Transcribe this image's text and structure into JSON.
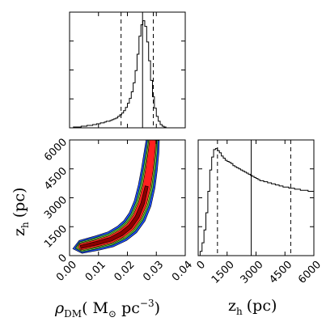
{
  "chart_data": [
    {
      "type": "histogram",
      "panel": "top-left",
      "x_ticks": [
        "0.00",
        "0.01",
        "0.02",
        "0.03",
        "0.04"
      ],
      "xlim": [
        0.0,
        0.042
      ],
      "bin_width": 0.0007,
      "bin_start": 0.0,
      "counts": [
        0,
        0,
        1,
        1,
        1,
        1,
        2,
        2,
        2,
        3,
        3,
        3,
        4,
        4,
        5,
        5,
        6,
        6,
        7,
        8,
        8,
        9,
        10,
        11,
        12,
        14,
        16,
        18,
        21,
        25,
        30,
        36,
        44,
        55,
        70,
        90,
        112,
        126,
        131,
        124,
        105,
        82,
        58,
        38,
        24,
        14,
        8,
        4,
        2,
        1,
        0,
        0,
        0,
        0,
        0,
        0,
        0,
        0,
        0,
        0
      ],
      "median": 0.0265,
      "lower": 0.0187,
      "upper": 0.0304
    },
    {
      "type": "contour",
      "panel": "bottom-left",
      "x_label": "ρ",
      "x_label_sub": "DM",
      "x_label_units_a": "( M",
      "x_label_units_sun": "⊙",
      "x_label_units_b": " pc",
      "x_label_units_exp": "−3",
      "x_label_units_c": ")",
      "y_label": "z",
      "y_label_sub": "h",
      "y_label_units": "(pc)",
      "x_ticks": [
        "0.00",
        "0.01",
        "0.02",
        "0.03",
        "0.04"
      ],
      "y_ticks": [
        "0",
        "1500",
        "3000",
        "4500",
        "6000"
      ],
      "xlim": [
        0.0,
        0.042
      ],
      "ylim": [
        0,
        6000
      ],
      "level_colors": [
        "#1f4fff",
        "#50c850",
        "#ffff40",
        "#ff2020",
        "#8b0000"
      ],
      "ridge": [
        {
          "x": 0.004,
          "y": 450
        },
        {
          "x": 0.01,
          "y": 650
        },
        {
          "x": 0.015,
          "y": 850
        },
        {
          "x": 0.019,
          "y": 1150
        },
        {
          "x": 0.022,
          "y": 1500
        },
        {
          "x": 0.0245,
          "y": 2000
        },
        {
          "x": 0.0265,
          "y": 2700
        },
        {
          "x": 0.028,
          "y": 3600
        },
        {
          "x": 0.029,
          "y": 4500
        },
        {
          "x": 0.0298,
          "y": 5400
        },
        {
          "x": 0.0302,
          "y": 6000
        }
      ]
    },
    {
      "type": "histogram",
      "panel": "bottom-right",
      "x_label": "z",
      "x_label_sub": "h",
      "x_label_units": "(pc)",
      "x_ticks": [
        "0",
        "1500",
        "3000",
        "4500",
        "6000"
      ],
      "xlim": [
        0,
        6000
      ],
      "bin_width": 100,
      "bin_start": 0,
      "counts": [
        0,
        4,
        12,
        24,
        40,
        60,
        80,
        92,
        99,
        100,
        98,
        96,
        93,
        91,
        89,
        88,
        87,
        86,
        84,
        83,
        82,
        81,
        80,
        79,
        78,
        77,
        76,
        75,
        74,
        73,
        72,
        71,
        70,
        70,
        69,
        69,
        68,
        68,
        67,
        67,
        66,
        66,
        65,
        65,
        64,
        64,
        64,
        63,
        63,
        63,
        62,
        62,
        62,
        61,
        61,
        61,
        61,
        60,
        60,
        60
      ],
      "median": 2750,
      "lower": 1000,
      "upper": 4800
    }
  ]
}
